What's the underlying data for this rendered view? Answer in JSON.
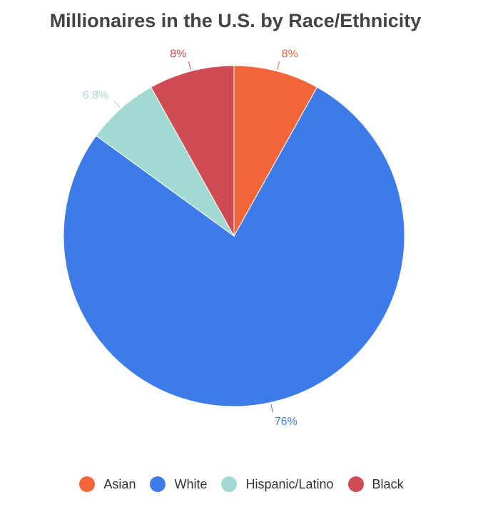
{
  "chart_data": {
    "type": "pie",
    "title": "Millionaires in the U.S. by Race/Ethnicity",
    "slices": [
      {
        "label": "Asian",
        "value": 8,
        "display": "8%",
        "color": "#f26539"
      },
      {
        "label": "White",
        "value": 76,
        "display": "76%",
        "color": "#3e7bea"
      },
      {
        "label": "Hispanic/Latino",
        "value": 6.8,
        "display": "6.8%",
        "color": "#a3d9d3"
      },
      {
        "label": "Black",
        "value": 8,
        "display": "8%",
        "color": "#d14b55"
      }
    ],
    "legend_position": "bottom"
  }
}
